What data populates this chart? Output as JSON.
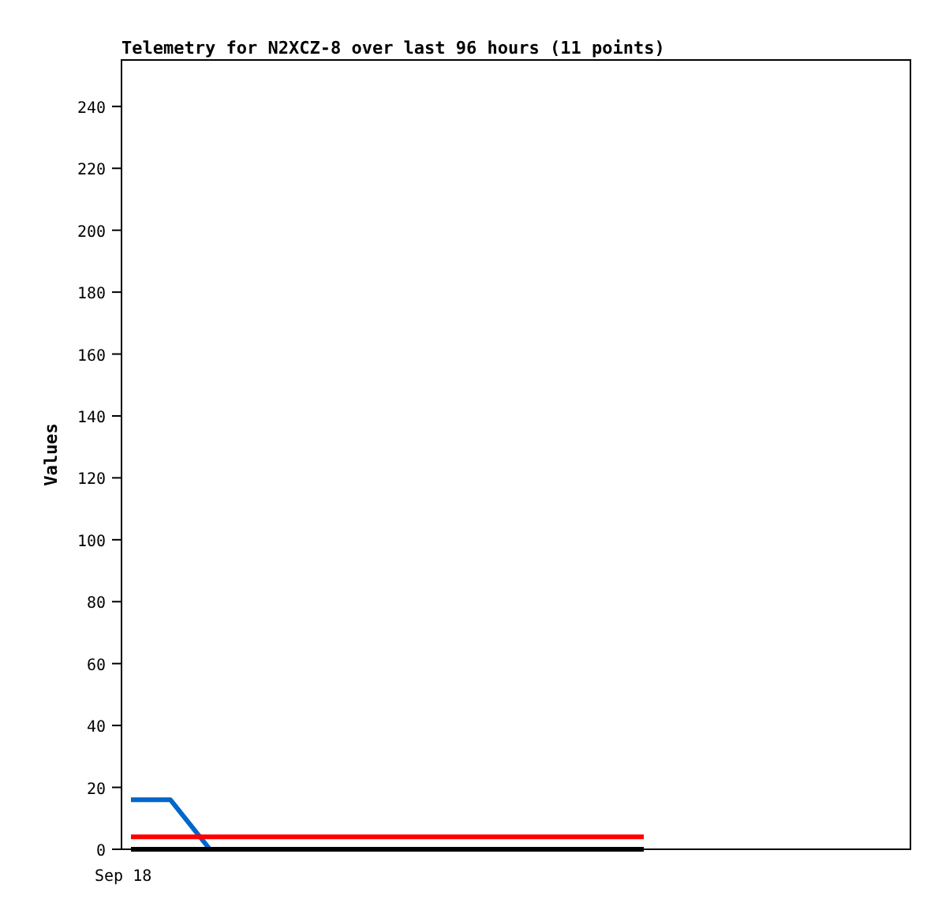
{
  "chart_data": {
    "type": "line",
    "title": "Telemetry for N2XCZ-8 over last 96 hours (11 points)",
    "ylabel": "Values",
    "annotations": [
      "Sep 18"
    ],
    "categories": [
      null,
      null,
      null,
      null,
      null,
      null,
      null,
      null,
      null,
      null,
      null,
      null,
      null,
      null
    ],
    "ylim": [
      0,
      255
    ],
    "yticks": [
      0,
      20,
      40,
      60,
      80,
      100,
      120,
      140,
      160,
      180,
      200,
      220,
      240
    ],
    "series": [
      {
        "color": "#0066cc",
        "values": [
          16,
          16,
          0,
          null,
          null,
          null,
          null,
          null,
          null,
          null,
          null,
          null,
          null,
          null
        ]
      },
      {
        "color": "#ff0000",
        "values": [
          4,
          4,
          4,
          4,
          4,
          4,
          4,
          4,
          4,
          4,
          4,
          4,
          4,
          4
        ]
      },
      {
        "color": "#000000",
        "values": [
          0,
          0,
          0,
          0,
          0,
          0,
          0,
          0,
          0,
          0,
          0,
          0,
          0,
          0
        ]
      }
    ]
  }
}
